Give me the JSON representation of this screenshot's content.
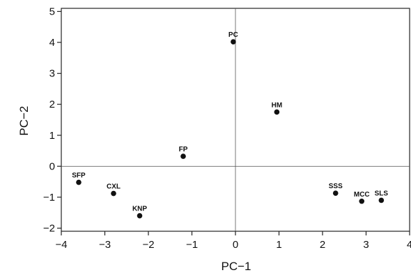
{
  "chart_data": {
    "type": "scatter",
    "xlabel": "PC−1",
    "ylabel": "PC−2",
    "xlim": [
      -4,
      4
    ],
    "ylim": [
      -2.1,
      5.1
    ],
    "x_ticks": [
      "−4",
      "−3",
      "−2",
      "−1",
      "0",
      "1",
      "2",
      "3",
      "4"
    ],
    "y_ticks": [
      "−2",
      "−1",
      "0",
      "1",
      "2",
      "3",
      "4",
      "5"
    ],
    "reference_lines": {
      "x": 0,
      "y": 0
    },
    "grid": false,
    "points": [
      {
        "label": "PC",
        "x": -0.05,
        "y": 4.02
      },
      {
        "label": "HM",
        "x": 0.95,
        "y": 1.75
      },
      {
        "label": "FP",
        "x": -1.2,
        "y": 0.32
      },
      {
        "label": "SFP",
        "x": -3.6,
        "y": -0.52
      },
      {
        "label": "CXL",
        "x": -2.8,
        "y": -0.88
      },
      {
        "label": "KNP",
        "x": -2.2,
        "y": -1.6
      },
      {
        "label": "SSS",
        "x": 2.3,
        "y": -0.87
      },
      {
        "label": "MCC",
        "x": 2.9,
        "y": -1.13
      },
      {
        "label": "SLS",
        "x": 3.35,
        "y": -1.1
      }
    ]
  }
}
